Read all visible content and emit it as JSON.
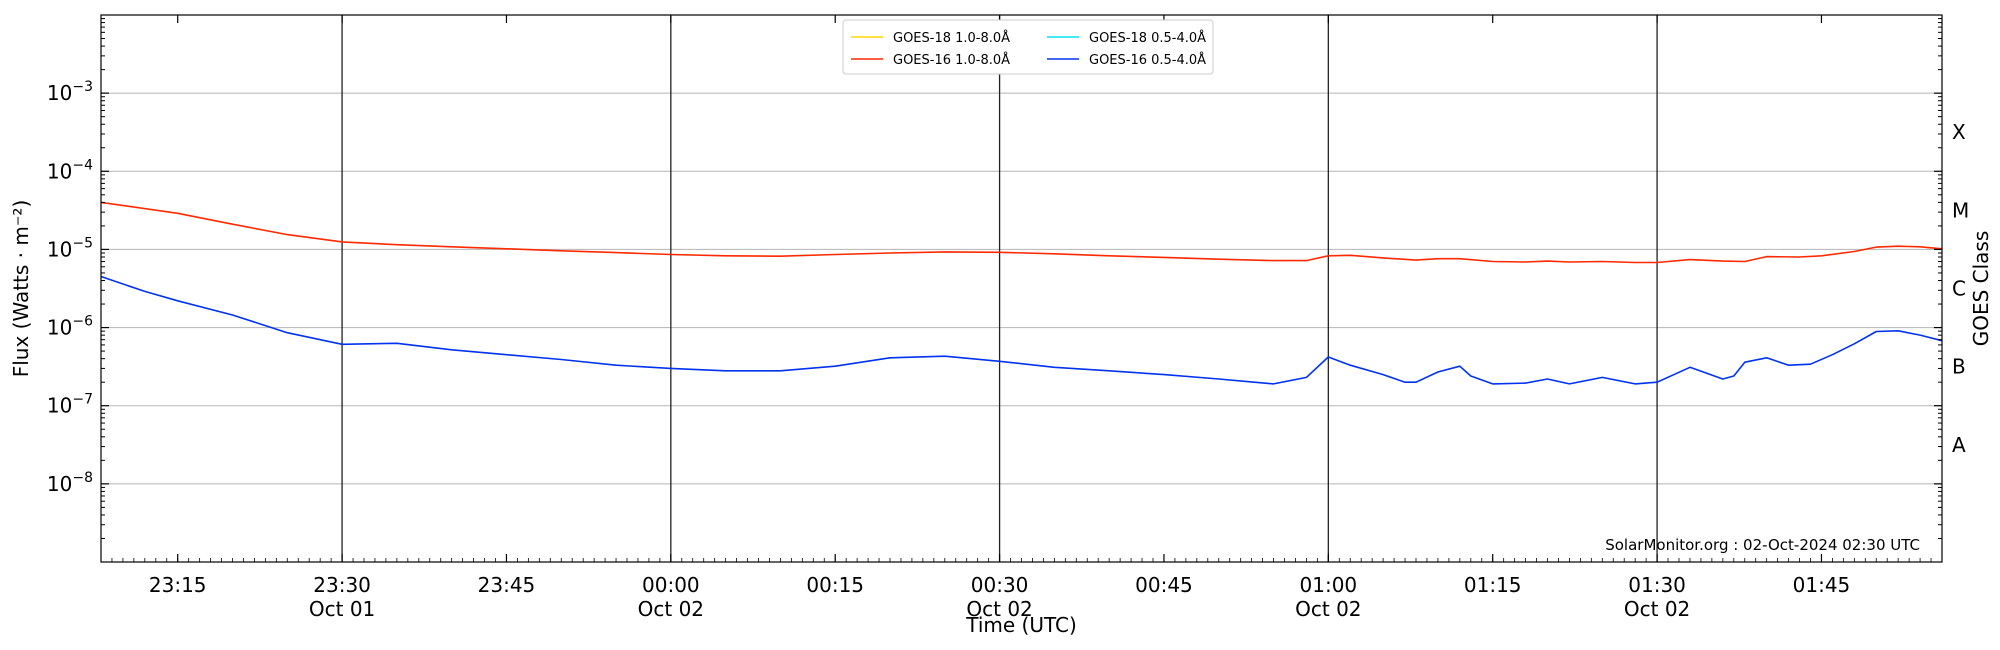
{
  "chart_data": {
    "type": "line",
    "title": "",
    "xlabel": "Time (UTC)",
    "ylabel": "Flux (Watts · m⁻²)",
    "right_axis_label": "GOES Class",
    "yscale": "log",
    "ylim": [
      1e-09,
      0.01
    ],
    "xlim": [
      "2024-10-01 23:08",
      "2024-10-02 01:56"
    ],
    "grid": "horizontal major lines; vertical lines every 30 minutes",
    "legend_location": "upper center",
    "x_ticks": [
      {
        "time": "2024-10-01 23:15",
        "label": "23:15",
        "sublabel": ""
      },
      {
        "time": "2024-10-01 23:30",
        "label": "23:30",
        "sublabel": "Oct 01"
      },
      {
        "time": "2024-10-01 23:45",
        "label": "23:45",
        "sublabel": ""
      },
      {
        "time": "2024-10-02 00:00",
        "label": "00:00",
        "sublabel": "Oct 02"
      },
      {
        "time": "2024-10-02 00:15",
        "label": "00:15",
        "sublabel": ""
      },
      {
        "time": "2024-10-02 00:30",
        "label": "00:30",
        "sublabel": "Oct 02"
      },
      {
        "time": "2024-10-02 00:45",
        "label": "00:45",
        "sublabel": ""
      },
      {
        "time": "2024-10-02 01:00",
        "label": "01:00",
        "sublabel": "Oct 02"
      },
      {
        "time": "2024-10-02 01:15",
        "label": "01:15",
        "sublabel": ""
      },
      {
        "time": "2024-10-02 01:30",
        "label": "01:30",
        "sublabel": "Oct 02"
      },
      {
        "time": "2024-10-02 01:45",
        "label": "01:45",
        "sublabel": ""
      }
    ],
    "vertical_lines": [
      "2024-10-01 23:30",
      "2024-10-02 00:00",
      "2024-10-02 00:30",
      "2024-10-02 01:00",
      "2024-10-02 01:30"
    ],
    "y_ticks": [
      {
        "value": 1e-08,
        "exponent": "−8"
      },
      {
        "value": 1e-07,
        "exponent": "−7"
      },
      {
        "value": 1e-06,
        "exponent": "−6"
      },
      {
        "value": 1e-05,
        "exponent": "−5"
      },
      {
        "value": 0.0001,
        "exponent": "−4"
      },
      {
        "value": 0.001,
        "exponent": "−3"
      }
    ],
    "goes_classes": [
      {
        "label": "A",
        "value": 3.16e-08
      },
      {
        "label": "B",
        "value": 3.16e-07
      },
      {
        "label": "C",
        "value": 3.16e-06
      },
      {
        "label": "M",
        "value": 3.16e-05
      },
      {
        "label": "X",
        "value": 0.000316
      }
    ],
    "series": [
      {
        "name": "GOES-18 1.0-8.0Å",
        "color": "#ffd700",
        "points": []
      },
      {
        "name": "GOES-18 0.5-4.0Å",
        "color": "#00e5ee",
        "points": []
      },
      {
        "name": "GOES-16 1.0-8.0Å",
        "color": "#ff2a00",
        "points": [
          [
            "2024-10-01 23:08",
            4e-05
          ],
          [
            "2024-10-01 23:15",
            2.9e-05
          ],
          [
            "2024-10-01 23:20",
            2.1e-05
          ],
          [
            "2024-10-01 23:25",
            1.55e-05
          ],
          [
            "2024-10-01 23:30",
            1.25e-05
          ],
          [
            "2024-10-01 23:35",
            1.15e-05
          ],
          [
            "2024-10-01 23:40",
            1.08e-05
          ],
          [
            "2024-10-01 23:45",
            1.02e-05
          ],
          [
            "2024-10-01 23:50",
            9.6e-06
          ],
          [
            "2024-10-01 23:55",
            9.1e-06
          ],
          [
            "2024-10-02 00:00",
            8.6e-06
          ],
          [
            "2024-10-02 00:05",
            8.3e-06
          ],
          [
            "2024-10-02 00:10",
            8.2e-06
          ],
          [
            "2024-10-02 00:15",
            8.6e-06
          ],
          [
            "2024-10-02 00:20",
            9e-06
          ],
          [
            "2024-10-02 00:25",
            9.3e-06
          ],
          [
            "2024-10-02 00:30",
            9.2e-06
          ],
          [
            "2024-10-02 00:35",
            8.8e-06
          ],
          [
            "2024-10-02 00:40",
            8.3e-06
          ],
          [
            "2024-10-02 00:45",
            7.9e-06
          ],
          [
            "2024-10-02 00:50",
            7.5e-06
          ],
          [
            "2024-10-02 00:55",
            7.2e-06
          ],
          [
            "2024-10-02 00:58",
            7.2e-06
          ],
          [
            "2024-10-02 01:00",
            8.3e-06
          ],
          [
            "2024-10-02 01:02",
            8.4e-06
          ],
          [
            "2024-10-02 01:05",
            7.8e-06
          ],
          [
            "2024-10-02 01:08",
            7.3e-06
          ],
          [
            "2024-10-02 01:10",
            7.6e-06
          ],
          [
            "2024-10-02 01:12",
            7.6e-06
          ],
          [
            "2024-10-02 01:15",
            7e-06
          ],
          [
            "2024-10-02 01:18",
            6.9e-06
          ],
          [
            "2024-10-02 01:20",
            7.1e-06
          ],
          [
            "2024-10-02 01:22",
            6.9e-06
          ],
          [
            "2024-10-02 01:25",
            7e-06
          ],
          [
            "2024-10-02 01:28",
            6.8e-06
          ],
          [
            "2024-10-02 01:30",
            6.8e-06
          ],
          [
            "2024-10-02 01:33",
            7.4e-06
          ],
          [
            "2024-10-02 01:36",
            7.1e-06
          ],
          [
            "2024-10-02 01:38",
            7e-06
          ],
          [
            "2024-10-02 01:40",
            8.1e-06
          ],
          [
            "2024-10-02 01:43",
            8e-06
          ],
          [
            "2024-10-02 01:45",
            8.3e-06
          ],
          [
            "2024-10-02 01:48",
            9.4e-06
          ],
          [
            "2024-10-02 01:50",
            1.07e-05
          ],
          [
            "2024-10-02 01:52",
            1.1e-05
          ],
          [
            "2024-10-02 01:54",
            1.08e-05
          ],
          [
            "2024-10-02 01:56",
            1.02e-05
          ]
        ]
      },
      {
        "name": "GOES-16 0.5-4.0Å",
        "color": "#0033ee",
        "points": [
          [
            "2024-10-01 23:08",
            4.5e-06
          ],
          [
            "2024-10-01 23:12",
            2.9e-06
          ],
          [
            "2024-10-01 23:15",
            2.2e-06
          ],
          [
            "2024-10-01 23:20",
            1.45e-06
          ],
          [
            "2024-10-01 23:25",
            8.6e-07
          ],
          [
            "2024-10-01 23:30",
            6.1e-07
          ],
          [
            "2024-10-01 23:35",
            6.3e-07
          ],
          [
            "2024-10-01 23:40",
            5.2e-07
          ],
          [
            "2024-10-01 23:45",
            4.5e-07
          ],
          [
            "2024-10-01 23:50",
            3.9e-07
          ],
          [
            "2024-10-01 23:55",
            3.3e-07
          ],
          [
            "2024-10-02 00:00",
            3e-07
          ],
          [
            "2024-10-02 00:05",
            2.8e-07
          ],
          [
            "2024-10-02 00:10",
            2.8e-07
          ],
          [
            "2024-10-02 00:15",
            3.2e-07
          ],
          [
            "2024-10-02 00:20",
            4.1e-07
          ],
          [
            "2024-10-02 00:25",
            4.3e-07
          ],
          [
            "2024-10-02 00:30",
            3.7e-07
          ],
          [
            "2024-10-02 00:35",
            3.1e-07
          ],
          [
            "2024-10-02 00:40",
            2.8e-07
          ],
          [
            "2024-10-02 00:45",
            2.5e-07
          ],
          [
            "2024-10-02 00:50",
            2.2e-07
          ],
          [
            "2024-10-02 00:55",
            1.9e-07
          ],
          [
            "2024-10-02 00:58",
            2.3e-07
          ],
          [
            "2024-10-02 01:00",
            4.2e-07
          ],
          [
            "2024-10-02 01:02",
            3.3e-07
          ],
          [
            "2024-10-02 01:05",
            2.5e-07
          ],
          [
            "2024-10-02 01:07",
            2e-07
          ],
          [
            "2024-10-02 01:08",
            2e-07
          ],
          [
            "2024-10-02 01:10",
            2.7e-07
          ],
          [
            "2024-10-02 01:12",
            3.2e-07
          ],
          [
            "2024-10-02 01:13",
            2.4e-07
          ],
          [
            "2024-10-02 01:15",
            1.9e-07
          ],
          [
            "2024-10-02 01:18",
            1.95e-07
          ],
          [
            "2024-10-02 01:20",
            2.2e-07
          ],
          [
            "2024-10-02 01:22",
            1.9e-07
          ],
          [
            "2024-10-02 01:25",
            2.3e-07
          ],
          [
            "2024-10-02 01:28",
            1.9e-07
          ],
          [
            "2024-10-02 01:30",
            2e-07
          ],
          [
            "2024-10-02 01:33",
            3.1e-07
          ],
          [
            "2024-10-02 01:36",
            2.2e-07
          ],
          [
            "2024-10-02 01:37",
            2.4e-07
          ],
          [
            "2024-10-02 01:38",
            3.6e-07
          ],
          [
            "2024-10-02 01:40",
            4.1e-07
          ],
          [
            "2024-10-02 01:42",
            3.3e-07
          ],
          [
            "2024-10-02 01:44",
            3.4e-07
          ],
          [
            "2024-10-02 01:46",
            4.5e-07
          ],
          [
            "2024-10-02 01:48",
            6.2e-07
          ],
          [
            "2024-10-02 01:50",
            8.9e-07
          ],
          [
            "2024-10-02 01:52",
            9.1e-07
          ],
          [
            "2024-10-02 01:54",
            8e-07
          ],
          [
            "2024-10-02 01:56",
            6.8e-07
          ]
        ]
      }
    ],
    "annotation": "SolarMonitor.org : 02-Oct-2024 02:30 UTC"
  }
}
